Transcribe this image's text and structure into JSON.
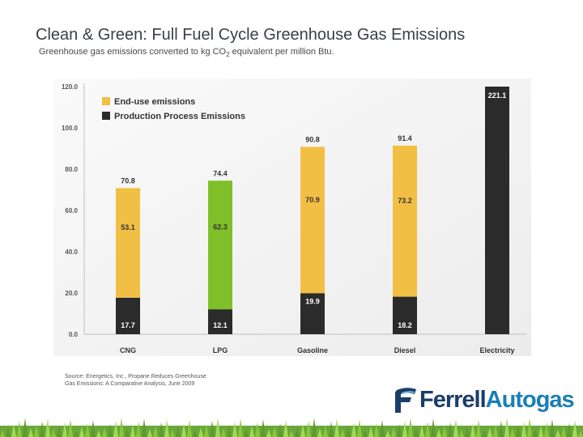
{
  "header": {
    "title": "Clean & Green: Full Fuel Cycle Greenhouse Gas Emissions",
    "subtitle_main": "Greenhouse gas emissions converted to kg CO",
    "subtitle_sub": "2",
    "subtitle_tail": " equivalent per million Btu."
  },
  "chart_data": {
    "type": "bar",
    "stacked": true,
    "title": "",
    "xlabel": "",
    "ylabel": "",
    "ylim": [
      0,
      120
    ],
    "y_ticks": [
      "0.0",
      "20.0",
      "40.0",
      "60.0",
      "80.0",
      "100.0",
      "120.0"
    ],
    "categories": [
      "CNG",
      "LPG",
      "Gasoline",
      "Diesel",
      "Electricity"
    ],
    "legend": [
      {
        "label": "End-use emissions",
        "color": "#f2bf45"
      },
      {
        "label": "Production Process Emissions",
        "color": "#2b2b2b"
      }
    ],
    "legend_position": "top-left",
    "bars": [
      {
        "category": "CNG",
        "production": 17.7,
        "production_label": "17.7",
        "end_use": 53.1,
        "end_use_label": "53.1",
        "total_label": "70.8",
        "end_use_color": "#f2bf45"
      },
      {
        "category": "LPG",
        "production": 12.1,
        "production_label": "12.1",
        "end_use": 62.3,
        "end_use_label": "62.3",
        "total_label": "74.4",
        "end_use_color": "#7fbf2a"
      },
      {
        "category": "Gasoline",
        "production": 19.9,
        "production_label": "19.9",
        "end_use": 70.9,
        "end_use_label": "70.9",
        "total_label": "90.8",
        "end_use_color": "#f2bf45"
      },
      {
        "category": "Diesel",
        "production": 18.2,
        "production_label": "18.2",
        "end_use": 73.2,
        "end_use_label": "73.2",
        "total_label": "91.4",
        "end_use_color": "#f2bf45"
      },
      {
        "category": "Electricity",
        "production": 221.1,
        "production_label": "",
        "end_use": 0,
        "end_use_label": "",
        "total_label": "221.1",
        "end_use_color": "#f2bf45"
      }
    ]
  },
  "footer": {
    "source_line1": "Source:  Energetics, Inc., Propane Reduces Greenhouse",
    "source_line2": "Gas Emissions: A Comparative Analysis, June 2009",
    "logo_part1": "Ferrell",
    "logo_part2": "Autogas",
    "logo_color_dark": "#1a3d6a",
    "logo_color_light": "#1a7fb5"
  }
}
